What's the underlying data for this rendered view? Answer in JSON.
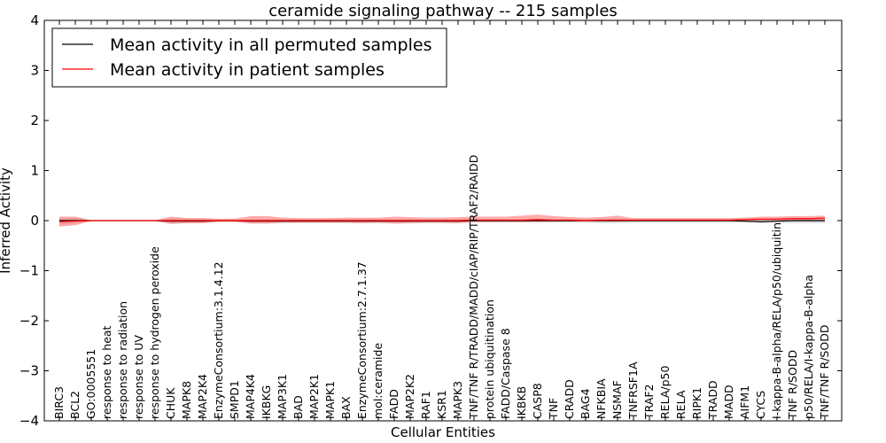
{
  "chart_data": {
    "type": "line",
    "title": "ceramide signaling pathway -- 215 samples",
    "xlabel": "Cellular Entities",
    "ylabel": "Inferred Activity",
    "ylim": [
      -4,
      4
    ],
    "yticks": [
      4,
      3,
      2,
      1,
      0,
      -1,
      -2,
      -3,
      -4
    ],
    "ytick_labels": [
      "4",
      "3",
      "2",
      "1",
      "0",
      "−1",
      "−2",
      "−3",
      "−4"
    ],
    "legend_location": "upper-left",
    "categories": [
      "BIRC3",
      "BCL2",
      "GO:0005551",
      "response to heat",
      "response to radiation",
      "response to UV",
      "response to hydrogen peroxide",
      "CHUK",
      "MAPK8",
      "MAP2K4",
      "EnzymeConsortium:3.1.4.12",
      "SMPD1",
      "MAP4K4",
      "IKBKG",
      "MAP3K1",
      "BAD",
      "MAP2K1",
      "MAPK1",
      "BAX",
      "EnzymeConsortium:2.7.1.37",
      "mol:ceramide",
      "FADD",
      "MAP2K2",
      "RAF1",
      "KSR1",
      "MAPK3",
      "TNF/TNF R/TRADD/MADD/cIAP/RIP/TRAF2/RAIDD",
      "protein ubiquitination",
      "FADD/Caspase 8",
      "IKBKB",
      "CASP8",
      "TNF",
      "CRADD",
      "BAG4",
      "NFKBIA",
      "NSMAF",
      "TNFRSF1A",
      "TRAF2",
      "RELA/p50",
      "RELA",
      "RIPK1",
      "TRADD",
      "MADD",
      "AIFM1",
      "CYCS",
      "I-kappa-B-alpha/RELA/p50/ubiquitin",
      "TNF R/SODD",
      "p50/RELA/I-kappa-B-alpha",
      "TNF/TNF R/SODD"
    ],
    "series": [
      {
        "name": "Mean activity in all permuted samples",
        "color": "#000000",
        "band_color": "#b0b0b0",
        "values": [
          0.0,
          0.0,
          0.0,
          0.0,
          0.0,
          0.0,
          0.0,
          -0.01,
          -0.01,
          -0.01,
          0.0,
          0.0,
          -0.01,
          -0.01,
          -0.01,
          -0.01,
          -0.01,
          -0.01,
          -0.01,
          -0.01,
          -0.01,
          -0.01,
          -0.01,
          -0.01,
          -0.01,
          -0.01,
          0.0,
          0.0,
          0.0,
          0.0,
          0.0,
          0.0,
          0.0,
          0.0,
          0.0,
          0.0,
          0.0,
          0.0,
          0.0,
          0.0,
          0.0,
          0.0,
          0.0,
          -0.01,
          -0.02,
          -0.01,
          0.0,
          0.0,
          0.0
        ],
        "band_lower": [
          -0.08,
          -0.06,
          -0.01,
          -0.01,
          -0.01,
          -0.01,
          -0.01,
          -0.07,
          -0.05,
          -0.05,
          -0.03,
          -0.03,
          -0.05,
          -0.05,
          -0.05,
          -0.05,
          -0.05,
          -0.05,
          -0.05,
          -0.05,
          -0.05,
          -0.05,
          -0.05,
          -0.05,
          -0.05,
          -0.05,
          -0.03,
          -0.03,
          -0.03,
          -0.03,
          -0.03,
          -0.04,
          -0.04,
          -0.04,
          -0.05,
          -0.05,
          -0.04,
          -0.04,
          -0.04,
          -0.04,
          -0.04,
          -0.04,
          -0.04,
          -0.04,
          -0.05,
          -0.05,
          -0.05,
          -0.05,
          -0.05
        ],
        "band_upper": [
          0.06,
          0.06,
          0.01,
          0.01,
          0.01,
          0.01,
          0.01,
          0.05,
          0.04,
          0.04,
          0.02,
          0.02,
          0.03,
          0.03,
          0.03,
          0.03,
          0.03,
          0.03,
          0.03,
          0.03,
          0.03,
          0.03,
          0.03,
          0.03,
          0.03,
          0.03,
          0.02,
          0.02,
          0.02,
          0.02,
          0.02,
          0.03,
          0.03,
          0.03,
          0.03,
          0.03,
          0.03,
          0.03,
          0.03,
          0.03,
          0.03,
          0.03,
          0.03,
          0.03,
          0.03,
          0.03,
          0.03,
          0.03,
          0.03
        ]
      },
      {
        "name": "Mean activity in patient samples",
        "color": "#ff0000",
        "band_color": "#ff6666",
        "values": [
          -0.02,
          -0.01,
          0.0,
          0.0,
          0.0,
          0.0,
          0.0,
          0.0,
          0.0,
          0.0,
          0.0,
          0.0,
          0.0,
          0.0,
          0.0,
          0.0,
          0.0,
          0.0,
          0.0,
          0.0,
          0.0,
          0.0,
          0.0,
          0.0,
          0.0,
          0.0,
          0.01,
          0.01,
          0.01,
          0.01,
          0.02,
          0.01,
          0.01,
          0.0,
          0.01,
          0.01,
          0.01,
          0.01,
          0.01,
          0.01,
          0.01,
          0.01,
          0.01,
          0.02,
          0.03,
          0.03,
          0.04,
          0.04,
          0.05
        ],
        "band_lower": [
          -0.12,
          -0.09,
          -0.01,
          -0.01,
          -0.01,
          -0.01,
          -0.01,
          -0.06,
          -0.05,
          -0.05,
          -0.02,
          -0.02,
          -0.06,
          -0.06,
          -0.04,
          -0.04,
          -0.04,
          -0.04,
          -0.04,
          -0.05,
          -0.04,
          -0.06,
          -0.05,
          -0.04,
          -0.04,
          -0.05,
          -0.03,
          -0.03,
          -0.03,
          -0.03,
          -0.03,
          -0.02,
          -0.02,
          -0.02,
          -0.02,
          -0.02,
          -0.01,
          -0.01,
          -0.01,
          -0.01,
          -0.01,
          -0.01,
          -0.01,
          0.0,
          0.0,
          0.0,
          0.0,
          0.0,
          0.0
        ],
        "band_upper": [
          0.08,
          0.08,
          0.01,
          0.01,
          0.01,
          0.01,
          0.01,
          0.08,
          0.05,
          0.05,
          0.04,
          0.04,
          0.09,
          0.09,
          0.06,
          0.05,
          0.05,
          0.05,
          0.06,
          0.06,
          0.06,
          0.08,
          0.07,
          0.06,
          0.06,
          0.07,
          0.08,
          0.08,
          0.08,
          0.1,
          0.12,
          0.09,
          0.07,
          0.06,
          0.07,
          0.1,
          0.05,
          0.05,
          0.05,
          0.05,
          0.05,
          0.05,
          0.05,
          0.06,
          0.08,
          0.08,
          0.09,
          0.09,
          0.1
        ]
      }
    ]
  }
}
